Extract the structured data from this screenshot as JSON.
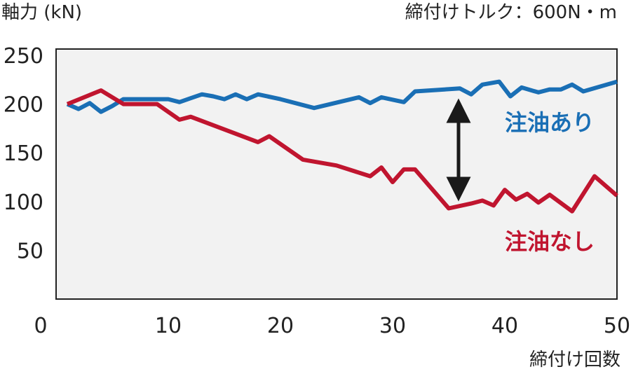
{
  "chart_data": {
    "type": "line",
    "ylabel": "軸力 (kN)",
    "subtitle": "締付けトルク：600N・m",
    "xlabel": "締付け回数",
    "xlim": [
      0,
      50
    ],
    "ylim": [
      0,
      250
    ],
    "x_ticks": [
      "0",
      "10",
      "20",
      "30",
      "40",
      "50"
    ],
    "y_ticks": [
      "50",
      "100",
      "150",
      "200",
      "250"
    ],
    "y_tick_values": [
      50,
      100,
      150,
      200,
      250
    ],
    "x_tick_values": [
      0,
      10,
      20,
      30,
      40,
      50
    ],
    "grid": false,
    "series": [
      {
        "name": "注油あり",
        "color": "#1a6fb5",
        "points": [
          [
            1,
            200
          ],
          [
            2,
            195
          ],
          [
            3,
            201
          ],
          [
            4,
            192
          ],
          [
            5,
            198
          ],
          [
            6,
            205
          ],
          [
            7,
            205
          ],
          [
            8,
            205
          ],
          [
            9,
            205
          ],
          [
            10,
            205
          ],
          [
            11,
            202
          ],
          [
            12,
            206
          ],
          [
            13,
            210
          ],
          [
            14,
            208
          ],
          [
            15,
            205
          ],
          [
            16,
            210
          ],
          [
            17,
            205
          ],
          [
            18,
            210
          ],
          [
            20,
            205
          ],
          [
            23,
            196
          ],
          [
            27,
            207
          ],
          [
            28,
            201
          ],
          [
            29,
            207
          ],
          [
            31,
            202
          ],
          [
            32,
            213
          ],
          [
            36,
            216
          ],
          [
            37,
            210
          ],
          [
            38,
            220
          ],
          [
            39.5,
            223
          ],
          [
            40.5,
            208
          ],
          [
            41.5,
            217
          ],
          [
            43,
            212
          ],
          [
            44,
            215
          ],
          [
            45,
            215
          ],
          [
            46,
            220
          ],
          [
            47,
            213
          ],
          [
            50,
            223
          ]
        ]
      },
      {
        "name": "注油なし",
        "color": "#c0152f",
        "points": [
          [
            1,
            200
          ],
          [
            4,
            214
          ],
          [
            6,
            200
          ],
          [
            9,
            200
          ],
          [
            11,
            184
          ],
          [
            12,
            187
          ],
          [
            15,
            174
          ],
          [
            18,
            161
          ],
          [
            19,
            167
          ],
          [
            22,
            143
          ],
          [
            25,
            137
          ],
          [
            28,
            126
          ],
          [
            29,
            135
          ],
          [
            30,
            120
          ],
          [
            31,
            133
          ],
          [
            32,
            133
          ],
          [
            35,
            93
          ],
          [
            37,
            98
          ],
          [
            38,
            101
          ],
          [
            39,
            96
          ],
          [
            40,
            112
          ],
          [
            41,
            102
          ],
          [
            42,
            108
          ],
          [
            43,
            99
          ],
          [
            44,
            107
          ],
          [
            46,
            90
          ],
          [
            48,
            126
          ],
          [
            50,
            106
          ]
        ]
      }
    ],
    "annotation": "double-headed-arrow"
  }
}
